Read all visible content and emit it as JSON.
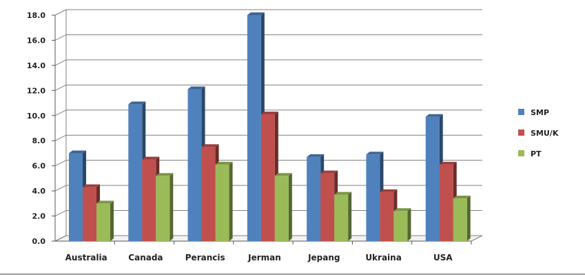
{
  "chart_data": {
    "type": "bar",
    "style": "3d-clustered-column",
    "title": "",
    "xlabel": "",
    "ylabel": "",
    "categories": [
      "Australia",
      "Canada",
      "Perancis",
      "Jerman",
      "Jepang",
      "Ukraina",
      "USA"
    ],
    "series": [
      {
        "name": "SMP",
        "color": "#4f81bd",
        "values": [
          7.0,
          10.9,
          12.1,
          18.0,
          6.7,
          6.9,
          9.9
        ]
      },
      {
        "name": "SMU/K",
        "color": "#c0504d",
        "values": [
          4.3,
          6.5,
          7.5,
          10.1,
          5.4,
          3.9,
          6.1
        ]
      },
      {
        "name": "PT",
        "color": "#9bbb59",
        "values": [
          3.0,
          5.2,
          6.1,
          5.2,
          3.7,
          2.4,
          3.4
        ]
      }
    ],
    "ylim": [
      0,
      18
    ],
    "yticks": [
      "0.0",
      "2.0",
      "4.0",
      "6.0",
      "8.0",
      "10.0",
      "12.0",
      "14.0",
      "16.0",
      "18.0"
    ],
    "grid": true,
    "legend_position": "right"
  }
}
